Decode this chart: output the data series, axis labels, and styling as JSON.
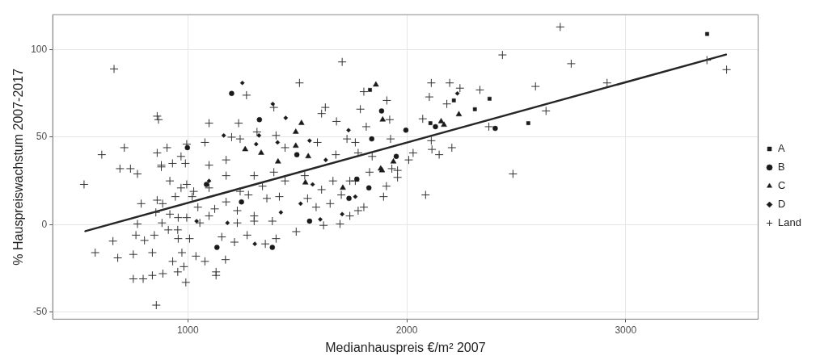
{
  "chart_data": {
    "type": "scatter",
    "xlabel": "Medianhauspreis €/m² 2007",
    "ylabel": "% Hauspreiswachstum 2007-2017",
    "xlim": [
      383,
      3605
    ],
    "ylim": [
      -54,
      120
    ],
    "xticks": [
      1000,
      2000,
      3000
    ],
    "yticks": [
      -50,
      0,
      50,
      100
    ],
    "grid": true,
    "legend": "right",
    "series": [
      {
        "name": "A",
        "color": "#1a1a1a",
        "marker": "square",
        "x": [
          3372,
          2215,
          2378,
          2311,
          2555,
          2108,
          1832
        ],
        "values": [
          109,
          71,
          72,
          66,
          58,
          58,
          77
        ]
      },
      {
        "name": "B",
        "color": "#1a1a1a",
        "marker": "circle",
        "x": [
          1996,
          2131,
          2404,
          1200,
          1327,
          1885,
          1840,
          998,
          1498,
          1952,
          1133,
          1386,
          1556,
          1736,
          1827,
          1772,
          1245,
          1085
        ],
        "values": [
          54,
          56,
          55,
          75,
          60,
          65,
          49,
          44,
          40,
          39,
          -13,
          -13,
          2,
          15,
          21,
          26,
          13,
          23
        ]
      },
      {
        "name": "C",
        "color": "#1a1a1a",
        "marker": "triangle",
        "x": [
          2157,
          2170,
          2238,
          1859,
          1890,
          1519,
          1493,
          1493,
          1262,
          1335,
          1550,
          1412,
          1939,
          1881,
          1537,
          1708,
          1887
        ],
        "values": [
          59,
          57,
          63,
          80,
          60,
          58,
          53,
          45,
          43,
          41,
          39,
          36,
          36,
          32,
          24,
          21,
          31
        ]
      },
      {
        "name": "D",
        "color": "#1a1a1a",
        "marker": "diamond",
        "x": [
          2231,
          1249,
          1388,
          1447,
          1734,
          1164,
          1325,
          1312,
          1410,
          1556,
          1630,
          1097,
          1040,
          1306,
          1515,
          1605,
          1705,
          1765,
          1425,
          1181,
          1570
        ],
        "values": [
          75,
          81,
          69,
          61,
          54,
          51,
          51,
          46,
          47,
          48,
          37,
          25,
          2,
          -11,
          12,
          3,
          6,
          16,
          7,
          1,
          23
        ]
      },
      {
        "name": "Land",
        "color": "#333333",
        "marker": "cross",
        "x": [
          663,
          1705,
          860,
          866,
          1097,
          1268,
          1510,
          1393,
          1628,
          1611,
          1788,
          1804,
          1909,
          1679,
          1815,
          1922,
          1926,
          607,
          710,
          690,
          738,
          770,
          860,
          905,
          995,
          1078,
          930,
          969,
          989,
          879,
          1175,
          1200,
          1239,
          1232,
          1316,
          1403,
          1444,
          1592,
          1676,
          1727,
          1765,
          1778,
          1842,
          1958,
          2009,
          2701,
          2437,
          2751,
          3461,
          3371,
          2915,
          2588,
          2112,
          2196,
          2243,
          2334,
          2103,
          2183,
          2636,
          2073,
          2375,
          2112,
          2115,
          2148,
          2206,
          2029,
          2485,
          2086,
          526,
          658,
          577,
          680,
          751,
          838,
          751,
          796,
          838,
          886,
          856,
          954,
          991,
          982,
          931,
          1037,
          1078,
          1129,
          1129,
          1172,
          973,
          956,
          1008,
          847,
          763,
          802,
          911,
          954,
          770,
          882,
          1155,
          1213,
          1271,
          1354,
          1403,
          1495,
          1620,
          1695,
          1740,
          1804,
          1778,
          1386,
          1303,
          1226,
          1055,
          995,
          956,
          1097,
          918,
          854,
          787,
          860,
          943,
          885,
          1020,
          1046,
          1123,
          1175,
          1226,
          1303,
          1361,
          1418,
          1277,
          1586,
          1650,
          1547,
          1611,
          1894,
          1907,
          1701,
          1765,
          1830,
          1663,
          1444,
          1341,
          1239,
          1097,
          1027,
          969,
          918,
          995,
          879,
          1097,
          1175,
          1303,
          1393,
          1534,
          1958,
          1932,
          1740
        ],
        "values": [
          89,
          93,
          62,
          60,
          58,
          74,
          81,
          67,
          67,
          63.5,
          66,
          76,
          71,
          59,
          56,
          60,
          49,
          40,
          44,
          32,
          32,
          29,
          41,
          44,
          46,
          47,
          35,
          39,
          35,
          33,
          37,
          50,
          49,
          58,
          53,
          51,
          44,
          47,
          40,
          49,
          47,
          41,
          39,
          31,
          37,
          113,
          97,
          92,
          88.6,
          94,
          81,
          79,
          81,
          81,
          78,
          77,
          73,
          69,
          65,
          60.5,
          56,
          48,
          43,
          40,
          44,
          41,
          29,
          17,
          23,
          -9.4,
          -16,
          -19,
          -17,
          -16,
          -31,
          -31,
          -29,
          -28,
          -46,
          -27,
          -33,
          -24,
          -21,
          -18,
          -21,
          -27,
          -29,
          -20,
          -16,
          -8,
          -8,
          -6,
          -6,
          -9,
          -3,
          -3,
          0.4,
          1,
          -7,
          -10,
          -6,
          -11,
          -8,
          -4,
          -0.4,
          0.4,
          5,
          10,
          8,
          2,
          2,
          1,
          1,
          4,
          4,
          5,
          6,
          7,
          12,
          14,
          16,
          12,
          16,
          10,
          9,
          13,
          8,
          5,
          15,
          16,
          17,
          10,
          12,
          15,
          20,
          16,
          22,
          17,
          25,
          30,
          25,
          25,
          22,
          19,
          21,
          19,
          21,
          25,
          23,
          34,
          34,
          28,
          28,
          30,
          28,
          27,
          32,
          25
        ]
      },
      {
        "type": "line",
        "color": "#262626",
        "x": [
          532,
          3458
        ],
        "values": [
          -3.7,
          97.2
        ]
      }
    ]
  }
}
